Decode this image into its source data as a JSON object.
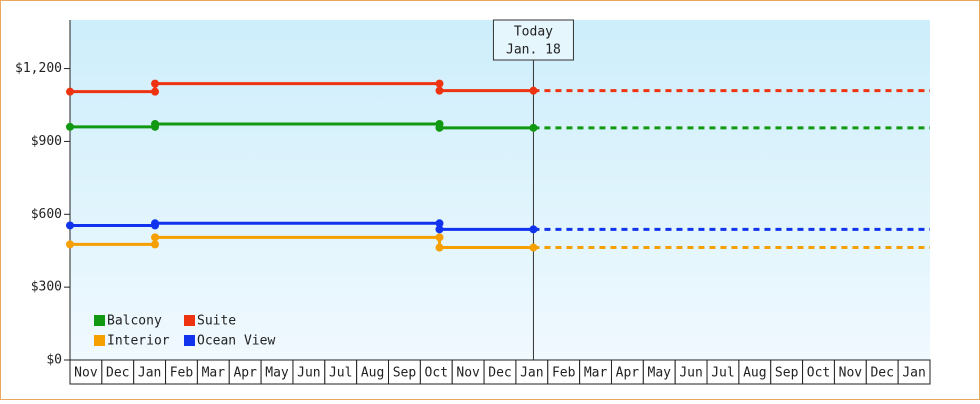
{
  "chart_data": {
    "type": "line",
    "categories": [
      "Nov",
      "Dec",
      "Jan",
      "Feb",
      "Mar",
      "Apr",
      "May",
      "Jun",
      "Jul",
      "Aug",
      "Sep",
      "Oct",
      "Nov",
      "Dec",
      "Jan",
      "Feb",
      "Mar",
      "Apr",
      "May",
      "Jun",
      "Jul",
      "Aug",
      "Sep",
      "Oct",
      "Nov",
      "Dec",
      "Jan"
    ],
    "xlim": [
      0,
      27
    ],
    "ylim": [
      0,
      1400
    ],
    "yticks": [
      {
        "value": 0,
        "label": "$0"
      },
      {
        "value": 300,
        "label": "$300"
      },
      {
        "value": 600,
        "label": "$600"
      },
      {
        "value": 900,
        "label": "$900"
      },
      {
        "value": 1200,
        "label": "$1,200"
      }
    ],
    "series": [
      {
        "name": "Balcony",
        "color": "#119911",
        "x": [
          0,
          2.67,
          2.67,
          11.6,
          11.6,
          14.55
        ],
        "values": [
          960,
          960,
          972,
          972,
          956,
          956
        ]
      },
      {
        "name": "Suite",
        "color": "#ee3311",
        "x": [
          0,
          2.67,
          2.67,
          11.6,
          11.6,
          14.55
        ],
        "values": [
          1105,
          1105,
          1138,
          1138,
          1109,
          1109
        ]
      },
      {
        "name": "Interior",
        "color": "#f5a000",
        "x": [
          0,
          2.67,
          2.67,
          11.6,
          11.6,
          14.55
        ],
        "values": [
          476,
          476,
          505,
          505,
          463,
          463
        ]
      },
      {
        "name": "Ocean View",
        "color": "#1133ee",
        "x": [
          0,
          2.67,
          2.67,
          11.6,
          11.6,
          14.55
        ],
        "values": [
          554,
          554,
          563,
          563,
          538,
          538
        ]
      }
    ],
    "annotation": {
      "text": [
        "Today",
        "Jan. 18"
      ],
      "x": 14.55
    },
    "legend": "lower-left"
  }
}
